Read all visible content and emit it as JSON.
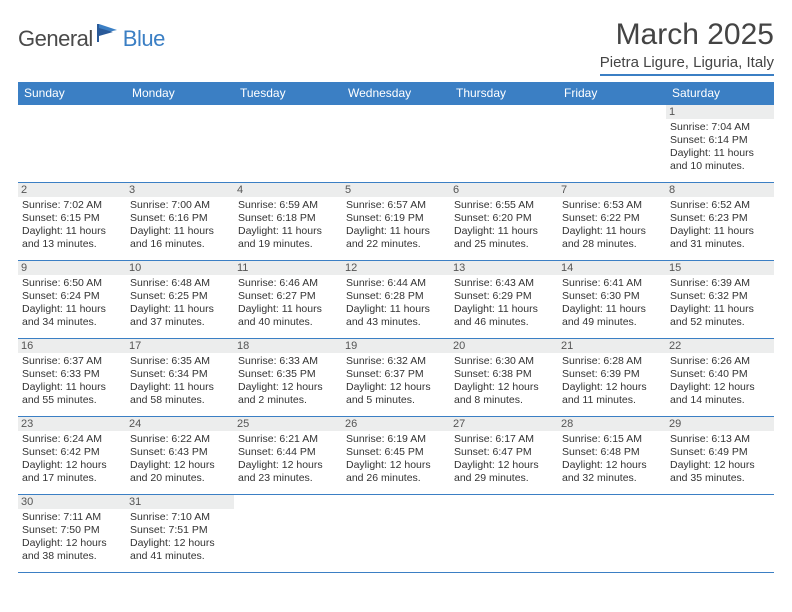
{
  "logo": {
    "general": "General",
    "blue": "Blue"
  },
  "title": "March 2025",
  "location": "Pietra Ligure, Liguria, Italy",
  "day_headers": [
    "Sunday",
    "Monday",
    "Tuesday",
    "Wednesday",
    "Thursday",
    "Friday",
    "Saturday"
  ],
  "colors": {
    "header_bg": "#3b7fc4",
    "header_text": "#ffffff",
    "daynum_bg": "#eceded",
    "border": "#3b7fc4",
    "text": "#333333",
    "background": "#ffffff"
  },
  "weeks": [
    [
      null,
      null,
      null,
      null,
      null,
      null,
      {
        "n": "1",
        "sr": "Sunrise: 7:04 AM",
        "ss": "Sunset: 6:14 PM",
        "d1": "Daylight: 11 hours",
        "d2": "and 10 minutes."
      }
    ],
    [
      {
        "n": "2",
        "sr": "Sunrise: 7:02 AM",
        "ss": "Sunset: 6:15 PM",
        "d1": "Daylight: 11 hours",
        "d2": "and 13 minutes."
      },
      {
        "n": "3",
        "sr": "Sunrise: 7:00 AM",
        "ss": "Sunset: 6:16 PM",
        "d1": "Daylight: 11 hours",
        "d2": "and 16 minutes."
      },
      {
        "n": "4",
        "sr": "Sunrise: 6:59 AM",
        "ss": "Sunset: 6:18 PM",
        "d1": "Daylight: 11 hours",
        "d2": "and 19 minutes."
      },
      {
        "n": "5",
        "sr": "Sunrise: 6:57 AM",
        "ss": "Sunset: 6:19 PM",
        "d1": "Daylight: 11 hours",
        "d2": "and 22 minutes."
      },
      {
        "n": "6",
        "sr": "Sunrise: 6:55 AM",
        "ss": "Sunset: 6:20 PM",
        "d1": "Daylight: 11 hours",
        "d2": "and 25 minutes."
      },
      {
        "n": "7",
        "sr": "Sunrise: 6:53 AM",
        "ss": "Sunset: 6:22 PM",
        "d1": "Daylight: 11 hours",
        "d2": "and 28 minutes."
      },
      {
        "n": "8",
        "sr": "Sunrise: 6:52 AM",
        "ss": "Sunset: 6:23 PM",
        "d1": "Daylight: 11 hours",
        "d2": "and 31 minutes."
      }
    ],
    [
      {
        "n": "9",
        "sr": "Sunrise: 6:50 AM",
        "ss": "Sunset: 6:24 PM",
        "d1": "Daylight: 11 hours",
        "d2": "and 34 minutes."
      },
      {
        "n": "10",
        "sr": "Sunrise: 6:48 AM",
        "ss": "Sunset: 6:25 PM",
        "d1": "Daylight: 11 hours",
        "d2": "and 37 minutes."
      },
      {
        "n": "11",
        "sr": "Sunrise: 6:46 AM",
        "ss": "Sunset: 6:27 PM",
        "d1": "Daylight: 11 hours",
        "d2": "and 40 minutes."
      },
      {
        "n": "12",
        "sr": "Sunrise: 6:44 AM",
        "ss": "Sunset: 6:28 PM",
        "d1": "Daylight: 11 hours",
        "d2": "and 43 minutes."
      },
      {
        "n": "13",
        "sr": "Sunrise: 6:43 AM",
        "ss": "Sunset: 6:29 PM",
        "d1": "Daylight: 11 hours",
        "d2": "and 46 minutes."
      },
      {
        "n": "14",
        "sr": "Sunrise: 6:41 AM",
        "ss": "Sunset: 6:30 PM",
        "d1": "Daylight: 11 hours",
        "d2": "and 49 minutes."
      },
      {
        "n": "15",
        "sr": "Sunrise: 6:39 AM",
        "ss": "Sunset: 6:32 PM",
        "d1": "Daylight: 11 hours",
        "d2": "and 52 minutes."
      }
    ],
    [
      {
        "n": "16",
        "sr": "Sunrise: 6:37 AM",
        "ss": "Sunset: 6:33 PM",
        "d1": "Daylight: 11 hours",
        "d2": "and 55 minutes."
      },
      {
        "n": "17",
        "sr": "Sunrise: 6:35 AM",
        "ss": "Sunset: 6:34 PM",
        "d1": "Daylight: 11 hours",
        "d2": "and 58 minutes."
      },
      {
        "n": "18",
        "sr": "Sunrise: 6:33 AM",
        "ss": "Sunset: 6:35 PM",
        "d1": "Daylight: 12 hours",
        "d2": "and 2 minutes."
      },
      {
        "n": "19",
        "sr": "Sunrise: 6:32 AM",
        "ss": "Sunset: 6:37 PM",
        "d1": "Daylight: 12 hours",
        "d2": "and 5 minutes."
      },
      {
        "n": "20",
        "sr": "Sunrise: 6:30 AM",
        "ss": "Sunset: 6:38 PM",
        "d1": "Daylight: 12 hours",
        "d2": "and 8 minutes."
      },
      {
        "n": "21",
        "sr": "Sunrise: 6:28 AM",
        "ss": "Sunset: 6:39 PM",
        "d1": "Daylight: 12 hours",
        "d2": "and 11 minutes."
      },
      {
        "n": "22",
        "sr": "Sunrise: 6:26 AM",
        "ss": "Sunset: 6:40 PM",
        "d1": "Daylight: 12 hours",
        "d2": "and 14 minutes."
      }
    ],
    [
      {
        "n": "23",
        "sr": "Sunrise: 6:24 AM",
        "ss": "Sunset: 6:42 PM",
        "d1": "Daylight: 12 hours",
        "d2": "and 17 minutes."
      },
      {
        "n": "24",
        "sr": "Sunrise: 6:22 AM",
        "ss": "Sunset: 6:43 PM",
        "d1": "Daylight: 12 hours",
        "d2": "and 20 minutes."
      },
      {
        "n": "25",
        "sr": "Sunrise: 6:21 AM",
        "ss": "Sunset: 6:44 PM",
        "d1": "Daylight: 12 hours",
        "d2": "and 23 minutes."
      },
      {
        "n": "26",
        "sr": "Sunrise: 6:19 AM",
        "ss": "Sunset: 6:45 PM",
        "d1": "Daylight: 12 hours",
        "d2": "and 26 minutes."
      },
      {
        "n": "27",
        "sr": "Sunrise: 6:17 AM",
        "ss": "Sunset: 6:47 PM",
        "d1": "Daylight: 12 hours",
        "d2": "and 29 minutes."
      },
      {
        "n": "28",
        "sr": "Sunrise: 6:15 AM",
        "ss": "Sunset: 6:48 PM",
        "d1": "Daylight: 12 hours",
        "d2": "and 32 minutes."
      },
      {
        "n": "29",
        "sr": "Sunrise: 6:13 AM",
        "ss": "Sunset: 6:49 PM",
        "d1": "Daylight: 12 hours",
        "d2": "and 35 minutes."
      }
    ],
    [
      {
        "n": "30",
        "sr": "Sunrise: 7:11 AM",
        "ss": "Sunset: 7:50 PM",
        "d1": "Daylight: 12 hours",
        "d2": "and 38 minutes."
      },
      {
        "n": "31",
        "sr": "Sunrise: 7:10 AM",
        "ss": "Sunset: 7:51 PM",
        "d1": "Daylight: 12 hours",
        "d2": "and 41 minutes."
      },
      null,
      null,
      null,
      null,
      null
    ]
  ]
}
